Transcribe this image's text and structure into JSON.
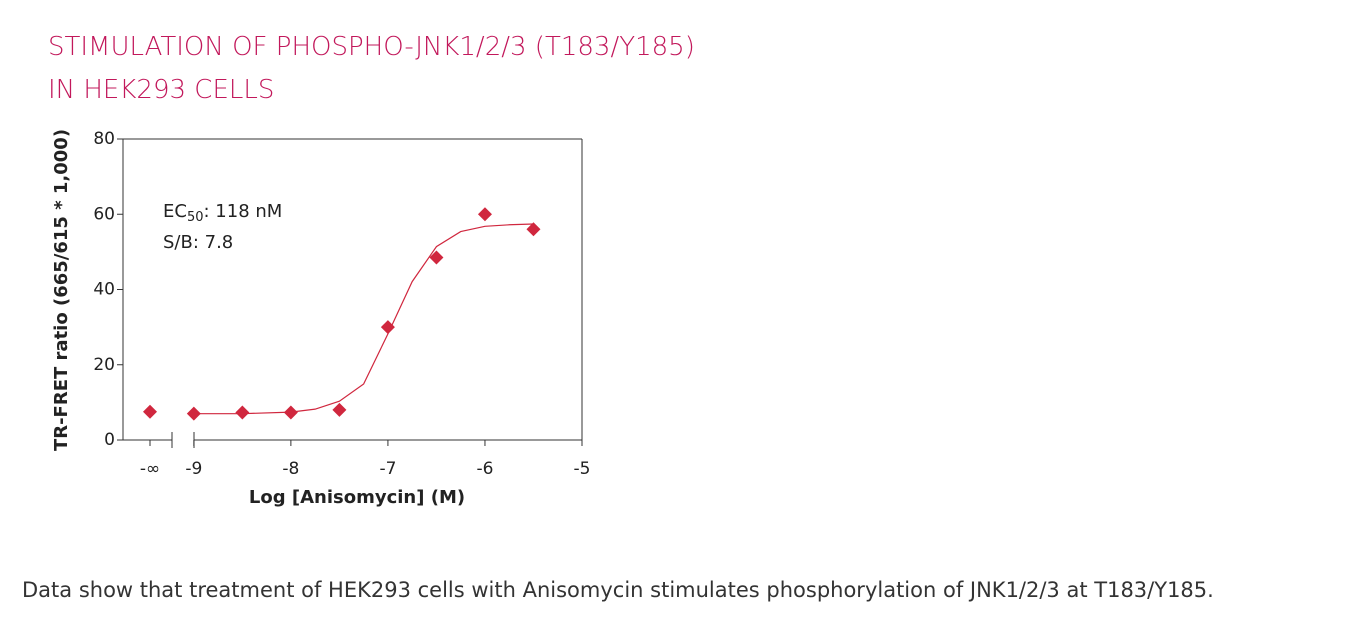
{
  "chart_data": {
    "type": "scatter",
    "title_lines": [
      "STIMULATION OF PHOSPHO-JNK1/2/3 (T183/Y185)",
      "IN HEK293 CELLS"
    ],
    "x_label": "Log [Anisomycin] (M)",
    "y_label": "TR-FRET ratio (665/615 * 1,000)",
    "annotations": {
      "ec_prefix": "EC",
      "ec_sub": "50",
      "ec_value": ": 118 nM",
      "sb": "S/B: 7.8"
    },
    "xlim": [
      -9.73,
      -5
    ],
    "ylim": [
      0,
      80
    ],
    "xticks": [
      -9,
      -8,
      -7,
      -6,
      -5
    ],
    "yticks": [
      0,
      20,
      40,
      60,
      80
    ],
    "x_break_label": "-∞",
    "baseline_value": 7.5,
    "color": "#d0273e",
    "series": [
      {
        "x": [
          -9,
          -8.5,
          -8,
          -7.5,
          -7,
          -6.5,
          -6,
          -5.5
        ],
        "values": [
          7,
          7.3,
          7.3,
          8,
          30,
          48.5,
          60,
          56
        ]
      }
    ],
    "fit": {
      "x": [
        -9,
        -8.5,
        -8,
        -7.75,
        -7.5,
        -7.25,
        -7,
        -6.75,
        -6.5,
        -6.25,
        -6,
        -5.75,
        -5.5
      ],
      "values": [
        7,
        7,
        7.4,
        8.2,
        10.3,
        14.9,
        28.2,
        42.1,
        51.4,
        55.4,
        56.8,
        57.2,
        57.4
      ]
    },
    "caption": "Data show that treatment of HEK293 cells with Anisomycin stimulates phosphorylation of JNK1/2/3 at T183/Y185."
  }
}
